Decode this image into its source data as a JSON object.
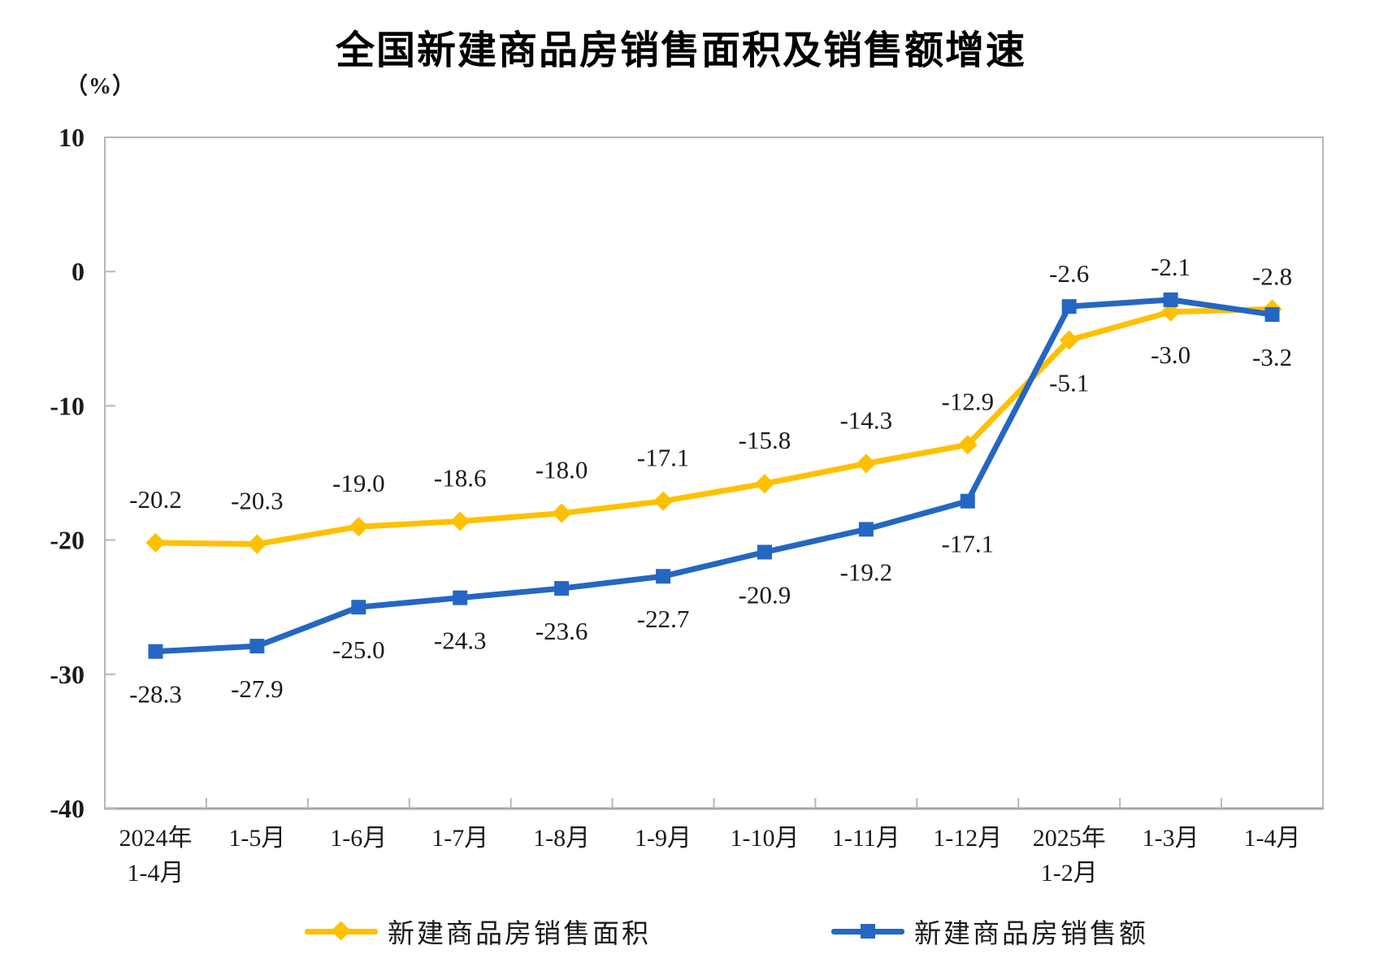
{
  "title": "全国新建商品房销售面积及销售额增速",
  "unit_label": "（%）",
  "colors": {
    "sales_area_yellow": "#FFC000",
    "sales_amount_blue": "#2467C2",
    "axis_gray": "#b7b7b7",
    "axis_baseline_gray": "#a6a6a6",
    "label_text": "#1a1a1a"
  },
  "chart_data": {
    "type": "line",
    "title": "全国新建商品房销售面积及销售额增速",
    "ylabel": "（%）",
    "xlabel": "",
    "grid": false,
    "legend_position": "bottom",
    "ylim": [
      -40,
      10
    ],
    "y_ticks": [
      10,
      0,
      -10,
      -20,
      -30,
      -40
    ],
    "categories": [
      "2024年\n1-4月",
      "1-5月",
      "1-6月",
      "1-7月",
      "1-8月",
      "1-9月",
      "1-10月",
      "1-11月",
      "1-12月",
      "2025年\n1-2月",
      "1-3月",
      "1-4月"
    ],
    "series": [
      {
        "name": "新建商品房销售面积",
        "color": "#FFC000",
        "marker": "diamond",
        "values": [
          -20.2,
          -20.3,
          -19.0,
          -18.6,
          -18.0,
          -17.1,
          -15.8,
          -14.3,
          -12.9,
          -5.1,
          -3.0,
          -2.8
        ],
        "labels": [
          "-20.2",
          "-20.3",
          "-19.0",
          "-18.6",
          "-18.0",
          "-17.1",
          "-15.8",
          "-14.3",
          "-12.9",
          "-5.1",
          "-3.0",
          "-2.8"
        ]
      },
      {
        "name": "新建商品房销售额",
        "color": "#2467C2",
        "marker": "square",
        "values": [
          -28.3,
          -27.9,
          -25.0,
          -24.3,
          -23.6,
          -22.7,
          -20.9,
          -19.2,
          -17.1,
          -2.6,
          -2.1,
          -3.2
        ],
        "labels": [
          "-28.3",
          "-27.9",
          "-25.0",
          "-24.3",
          "-23.6",
          "-22.7",
          "-20.9",
          "-19.2",
          "-17.1",
          "-2.6",
          "-2.1",
          "-3.2"
        ]
      }
    ]
  }
}
